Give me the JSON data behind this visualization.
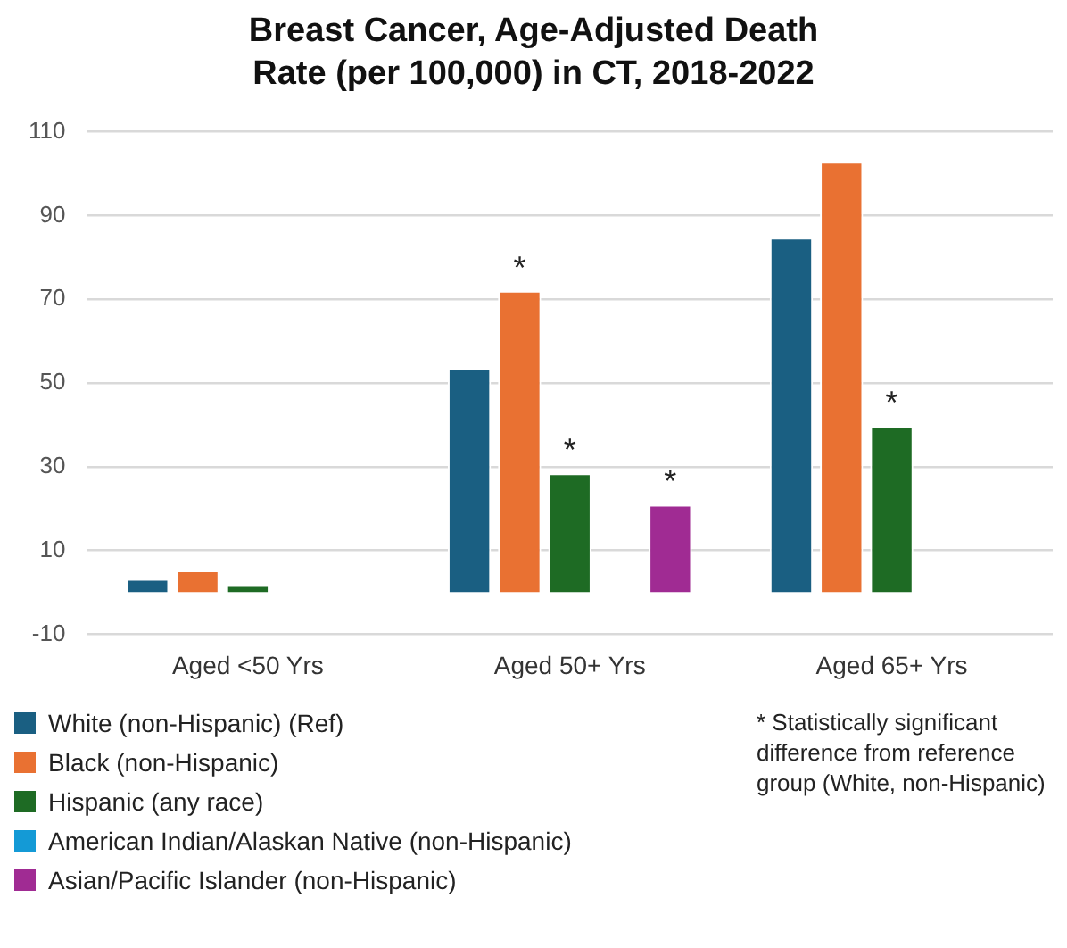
{
  "chart_data": {
    "type": "bar",
    "title": "Breast Cancer, Age-Adjusted Death Rate (per 100,000) in CT, 2018-2022",
    "categories": [
      "Aged <50 Yrs",
      "Aged 50+ Yrs",
      "Aged 65+ Yrs"
    ],
    "series": [
      {
        "name": "White (non-Hispanic) (Ref)",
        "color": "#1a5f82",
        "values": [
          3.2,
          53.4,
          84.7
        ]
      },
      {
        "name": "Black (non-Hispanic)",
        "color": "#e97132",
        "values": [
          5.2,
          72.0,
          102.8
        ],
        "value_labels": [
          null,
          "*",
          null
        ]
      },
      {
        "name": "Hispanic (any race)",
        "color": "#1e6b24",
        "values": [
          1.7,
          28.4,
          39.7
        ],
        "value_labels": [
          null,
          "*",
          "*"
        ]
      },
      {
        "name": "American Indian/Alaskan Native (non-Hispanic)",
        "color": "#149ad6",
        "values": [
          null,
          null,
          null
        ]
      },
      {
        "name": "Asian/Pacific Islander (non-Hispanic)",
        "color": "#a02b93",
        "values": [
          null,
          20.9,
          null
        ],
        "value_labels": [
          null,
          "*",
          null
        ]
      }
    ],
    "ylim": [
      -10,
      110
    ],
    "yticks": [
      -10,
      10,
      30,
      50,
      70,
      90,
      110
    ],
    "grid": "y",
    "legend": "bottom",
    "annotations": [
      "* Statistically significant difference from reference group (White, non-Hispanic)"
    ]
  }
}
